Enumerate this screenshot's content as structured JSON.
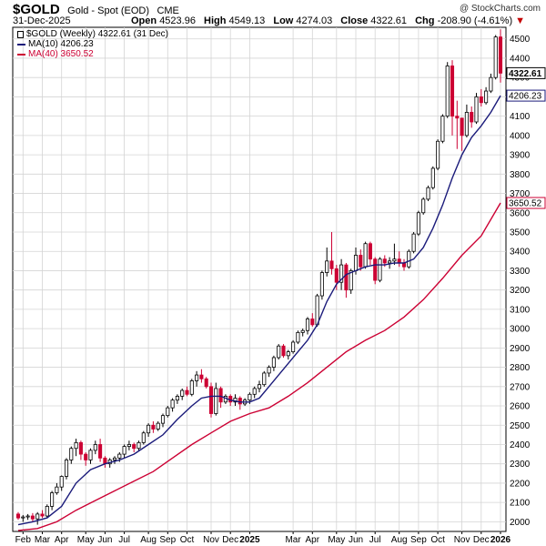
{
  "header": {
    "symbol": "$GOLD",
    "description": "Gold - Spot (EOD)",
    "exchange": "CME",
    "date": "31-Dec-2025",
    "credit": "@ StockCharts.com",
    "open_label": "Open",
    "open": "4523.96",
    "high_label": "High",
    "high": "4549.13",
    "low_label": "Low",
    "low": "4274.03",
    "close_label": "Close",
    "close": "4322.61",
    "chg_label": "Chg",
    "chg": "-208.90 (-4.61%)",
    "chg_arrow": "▼"
  },
  "legend": [
    {
      "label": "$GOLD (Weekly) 4322.61 (31 Dec)",
      "color": "#000000"
    },
    {
      "label": "MA(10) 4206.23",
      "color": "#1a1a7a"
    },
    {
      "label": "MA(40) 3650.52",
      "color": "#cc0033"
    }
  ],
  "price_tags": [
    {
      "value": 4322.61,
      "text": "4322.61",
      "style": "last"
    },
    {
      "value": 4206.23,
      "text": "4206.23",
      "style": "ma10"
    },
    {
      "value": 3650.52,
      "text": "3650.52",
      "style": "ma40"
    }
  ],
  "chart_data": {
    "type": "candlestick",
    "title": "$GOLD Gold - Spot (EOD) CME",
    "interval": "Weekly",
    "colors": {
      "up": "#ffffff",
      "down": "#cc0033",
      "ma10": "#1a1a7a",
      "ma40": "#cc0033",
      "grid": "#d4d4d4"
    },
    "ylim": [
      1950,
      4560
    ],
    "y_ticks": [
      2000,
      2100,
      2200,
      2300,
      2400,
      2500,
      2600,
      2700,
      2800,
      2900,
      3000,
      3100,
      3200,
      3300,
      3400,
      3500,
      3600,
      3700,
      3800,
      3900,
      4000,
      4100,
      4200,
      4300,
      4400,
      4500
    ],
    "x_ticks": [
      {
        "label": "Feb",
        "week": 1,
        "bold": false
      },
      {
        "label": "Mar",
        "week": 5,
        "bold": false
      },
      {
        "label": "Apr",
        "week": 9,
        "bold": false
      },
      {
        "label": "May",
        "week": 14,
        "bold": false
      },
      {
        "label": "Jun",
        "week": 18,
        "bold": false
      },
      {
        "label": "Jul",
        "week": 22,
        "bold": false
      },
      {
        "label": "Aug",
        "week": 27,
        "bold": false
      },
      {
        "label": "Sep",
        "week": 31,
        "bold": false
      },
      {
        "label": "Oct",
        "week": 35,
        "bold": false
      },
      {
        "label": "Nov",
        "week": 40,
        "bold": false
      },
      {
        "label": "Dec",
        "week": 44,
        "bold": false
      },
      {
        "label": "2025",
        "week": 48,
        "bold": true
      },
      {
        "label": "Mar",
        "week": 57,
        "bold": false
      },
      {
        "label": "Apr",
        "week": 61,
        "bold": false
      },
      {
        "label": "May",
        "week": 66,
        "bold": false
      },
      {
        "label": "Jun",
        "week": 70,
        "bold": false
      },
      {
        "label": "Jul",
        "week": 74,
        "bold": false
      },
      {
        "label": "Aug",
        "week": 79,
        "bold": false
      },
      {
        "label": "Sep",
        "week": 83,
        "bold": false
      },
      {
        "label": "Oct",
        "week": 87,
        "bold": false
      },
      {
        "label": "Nov",
        "week": 92,
        "bold": false
      },
      {
        "label": "Dec",
        "week": 96,
        "bold": false
      },
      {
        "label": "2026",
        "week": 100,
        "bold": true
      }
    ],
    "candles": [
      [
        2040,
        2050,
        2010,
        2020
      ],
      [
        2020,
        2035,
        2000,
        2025
      ],
      [
        2025,
        2040,
        2010,
        2030
      ],
      [
        2030,
        2045,
        2000,
        2015
      ],
      [
        2015,
        2050,
        1985,
        2040
      ],
      [
        2040,
        2060,
        2020,
        2030
      ],
      [
        2030,
        2090,
        2020,
        2080
      ],
      [
        2080,
        2160,
        2060,
        2150
      ],
      [
        2150,
        2200,
        2140,
        2180
      ],
      [
        2180,
        2240,
        2160,
        2235
      ],
      [
        2235,
        2330,
        2220,
        2320
      ],
      [
        2320,
        2390,
        2300,
        2380
      ],
      [
        2380,
        2430,
        2340,
        2410
      ],
      [
        2410,
        2420,
        2320,
        2350
      ],
      [
        2350,
        2360,
        2290,
        2320
      ],
      [
        2320,
        2380,
        2300,
        2370
      ],
      [
        2370,
        2420,
        2350,
        2400
      ],
      [
        2400,
        2430,
        2310,
        2330
      ],
      [
        2330,
        2340,
        2280,
        2300
      ],
      [
        2300,
        2330,
        2280,
        2320
      ],
      [
        2320,
        2340,
        2300,
        2330
      ],
      [
        2330,
        2360,
        2310,
        2350
      ],
      [
        2350,
        2400,
        2330,
        2390
      ],
      [
        2390,
        2420,
        2370,
        2400
      ],
      [
        2400,
        2410,
        2360,
        2380
      ],
      [
        2380,
        2420,
        2370,
        2410
      ],
      [
        2410,
        2470,
        2400,
        2460
      ],
      [
        2460,
        2510,
        2440,
        2500
      ],
      [
        2500,
        2520,
        2460,
        2480
      ],
      [
        2480,
        2520,
        2470,
        2510
      ],
      [
        2510,
        2560,
        2490,
        2550
      ],
      [
        2550,
        2600,
        2540,
        2590
      ],
      [
        2590,
        2640,
        2570,
        2630
      ],
      [
        2630,
        2660,
        2610,
        2650
      ],
      [
        2650,
        2690,
        2630,
        2680
      ],
      [
        2680,
        2700,
        2650,
        2660
      ],
      [
        2660,
        2740,
        2650,
        2730
      ],
      [
        2730,
        2780,
        2700,
        2760
      ],
      [
        2760,
        2790,
        2720,
        2740
      ],
      [
        2740,
        2750,
        2690,
        2700
      ],
      [
        2700,
        2720,
        2540,
        2560
      ],
      [
        2560,
        2720,
        2550,
        2690
      ],
      [
        2690,
        2700,
        2590,
        2620
      ],
      [
        2620,
        2660,
        2610,
        2650
      ],
      [
        2650,
        2660,
        2600,
        2620
      ],
      [
        2620,
        2660,
        2600,
        2640
      ],
      [
        2640,
        2650,
        2580,
        2610
      ],
      [
        2610,
        2640,
        2600,
        2630
      ],
      [
        2630,
        2670,
        2610,
        2660
      ],
      [
        2660,
        2700,
        2640,
        2690
      ],
      [
        2690,
        2730,
        2670,
        2710
      ],
      [
        2710,
        2780,
        2700,
        2770
      ],
      [
        2770,
        2810,
        2750,
        2800
      ],
      [
        2800,
        2860,
        2780,
        2850
      ],
      [
        2850,
        2920,
        2840,
        2910
      ],
      [
        2910,
        2920,
        2850,
        2860
      ],
      [
        2860,
        2890,
        2840,
        2880
      ],
      [
        2880,
        2940,
        2870,
        2930
      ],
      [
        2930,
        2990,
        2920,
        2980
      ],
      [
        2980,
        3000,
        2960,
        2990
      ],
      [
        2990,
        3060,
        2970,
        3050
      ],
      [
        3050,
        3080,
        3010,
        3020
      ],
      [
        3020,
        3180,
        3010,
        3170
      ],
      [
        3170,
        3300,
        3150,
        3290
      ],
      [
        3290,
        3420,
        3270,
        3350
      ],
      [
        3350,
        3500,
        3280,
        3310
      ],
      [
        3310,
        3330,
        3200,
        3240
      ],
      [
        3240,
        3360,
        3200,
        3330
      ],
      [
        3330,
        3340,
        3160,
        3200
      ],
      [
        3200,
        3310,
        3180,
        3300
      ],
      [
        3300,
        3420,
        3280,
        3380
      ],
      [
        3380,
        3410,
        3300,
        3320
      ],
      [
        3320,
        3450,
        3310,
        3440
      ],
      [
        3440,
        3450,
        3330,
        3360
      ],
      [
        3360,
        3370,
        3230,
        3250
      ],
      [
        3250,
        3370,
        3240,
        3360
      ],
      [
        3360,
        3380,
        3320,
        3340
      ],
      [
        3340,
        3370,
        3310,
        3350
      ],
      [
        3350,
        3440,
        3330,
        3360
      ],
      [
        3360,
        3400,
        3320,
        3340
      ],
      [
        3340,
        3360,
        3300,
        3320
      ],
      [
        3320,
        3410,
        3310,
        3400
      ],
      [
        3400,
        3500,
        3390,
        3490
      ],
      [
        3490,
        3610,
        3480,
        3600
      ],
      [
        3600,
        3680,
        3590,
        3670
      ],
      [
        3670,
        3740,
        3660,
        3730
      ],
      [
        3730,
        3840,
        3720,
        3830
      ],
      [
        3830,
        3980,
        3820,
        3970
      ],
      [
        3970,
        4110,
        3960,
        4100
      ],
      [
        4100,
        4380,
        4090,
        4360
      ],
      [
        4360,
        4390,
        4000,
        4100
      ],
      [
        4100,
        4180,
        3930,
        4090
      ],
      [
        4090,
        4080,
        3920,
        4000
      ],
      [
        4000,
        4160,
        3990,
        4120
      ],
      [
        4120,
        4150,
        4040,
        4070
      ],
      [
        4070,
        4220,
        4060,
        4200
      ],
      [
        4200,
        4240,
        4150,
        4170
      ],
      [
        4170,
        4250,
        4160,
        4230
      ],
      [
        4230,
        4320,
        4220,
        4300
      ],
      [
        4300,
        4520,
        4290,
        4510
      ],
      [
        4510,
        4549.13,
        4274.03,
        4322.61
      ]
    ],
    "ma10": [
      [
        0,
        1985
      ],
      [
        3,
        2000
      ],
      [
        6,
        2020
      ],
      [
        9,
        2080
      ],
      [
        12,
        2200
      ],
      [
        15,
        2270
      ],
      [
        18,
        2300
      ],
      [
        21,
        2320
      ],
      [
        24,
        2350
      ],
      [
        27,
        2400
      ],
      [
        30,
        2450
      ],
      [
        33,
        2530
      ],
      [
        36,
        2600
      ],
      [
        38,
        2640
      ],
      [
        40,
        2650
      ],
      [
        42,
        2650
      ],
      [
        44,
        2630
      ],
      [
        46,
        2620
      ],
      [
        48,
        2620
      ],
      [
        50,
        2640
      ],
      [
        52,
        2700
      ],
      [
        54,
        2760
      ],
      [
        56,
        2820
      ],
      [
        58,
        2880
      ],
      [
        60,
        2940
      ],
      [
        62,
        3020
      ],
      [
        64,
        3140
      ],
      [
        66,
        3230
      ],
      [
        68,
        3280
      ],
      [
        70,
        3300
      ],
      [
        72,
        3320
      ],
      [
        74,
        3330
      ],
      [
        76,
        3330
      ],
      [
        78,
        3340
      ],
      [
        80,
        3340
      ],
      [
        82,
        3360
      ],
      [
        84,
        3420
      ],
      [
        86,
        3520
      ],
      [
        88,
        3640
      ],
      [
        90,
        3780
      ],
      [
        92,
        3900
      ],
      [
        94,
        3990
      ],
      [
        96,
        4050
      ],
      [
        98,
        4120
      ],
      [
        100,
        4206.23
      ]
    ],
    "ma40": [
      [
        0,
        1955
      ],
      [
        4,
        1965
      ],
      [
        8,
        2000
      ],
      [
        12,
        2060
      ],
      [
        16,
        2110
      ],
      [
        20,
        2160
      ],
      [
        24,
        2210
      ],
      [
        28,
        2260
      ],
      [
        32,
        2330
      ],
      [
        36,
        2400
      ],
      [
        40,
        2460
      ],
      [
        44,
        2520
      ],
      [
        48,
        2560
      ],
      [
        52,
        2590
      ],
      [
        56,
        2650
      ],
      [
        60,
        2720
      ],
      [
        64,
        2800
      ],
      [
        68,
        2880
      ],
      [
        72,
        2940
      ],
      [
        76,
        2990
      ],
      [
        80,
        3060
      ],
      [
        84,
        3150
      ],
      [
        88,
        3260
      ],
      [
        92,
        3380
      ],
      [
        96,
        3480
      ],
      [
        100,
        3650.52
      ]
    ]
  }
}
